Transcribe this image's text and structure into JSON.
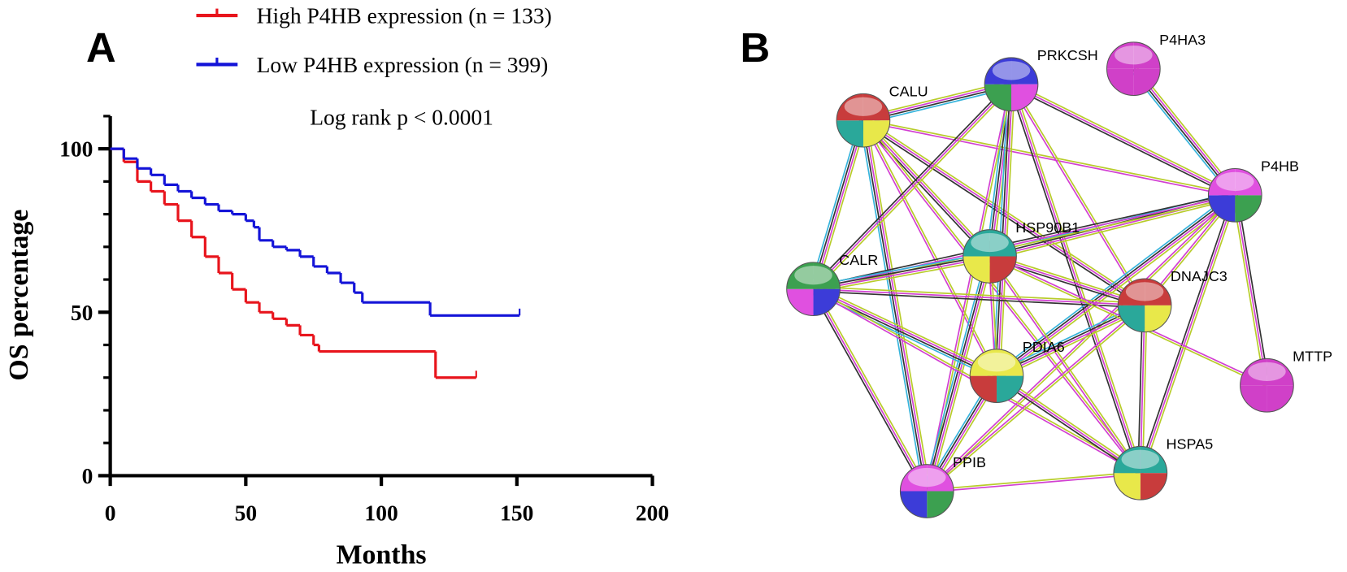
{
  "panel_labels": [
    "A",
    "B"
  ],
  "chart_data": {
    "type": "step",
    "xlabel": "Months",
    "ylabel": "OS percentage",
    "annotation": "Log rank p < 0.0001",
    "xlim": [
      0,
      200
    ],
    "xticks": [
      0,
      50,
      100,
      150,
      200
    ],
    "ylim": [
      0,
      110
    ],
    "yticks": [
      0,
      50,
      100
    ],
    "y_minor_ticks": [
      10,
      20,
      30,
      40,
      60,
      70,
      80,
      90,
      110
    ],
    "series": [
      {
        "name": "High P4HB expression (n = 133)",
        "color": "#e8141c",
        "x": [
          0,
          5,
          10,
          15,
          20,
          25,
          30,
          35,
          40,
          45,
          50,
          55,
          60,
          65,
          70,
          75,
          77,
          120,
          135
        ],
        "values": [
          100,
          96,
          90,
          87,
          83,
          78,
          73,
          67,
          62,
          57,
          53,
          50,
          48,
          46,
          43,
          40,
          38,
          30,
          30
        ]
      },
      {
        "name": "Low P4HB expression (n = 399)",
        "color": "#1414d8",
        "x": [
          0,
          5,
          10,
          15,
          20,
          25,
          30,
          35,
          40,
          45,
          50,
          53,
          55,
          60,
          65,
          70,
          75,
          80,
          85,
          90,
          93,
          118,
          151
        ],
        "values": [
          100,
          97,
          94,
          92,
          89,
          87,
          85,
          83,
          81,
          80,
          78,
          76,
          72,
          70,
          69,
          67,
          64,
          62,
          59,
          56,
          53,
          49,
          49
        ]
      }
    ]
  },
  "network": {
    "nodes": [
      {
        "label": "CALU"
      },
      {
        "label": "PRKCSH"
      },
      {
        "label": "P4HA3"
      },
      {
        "label": "P4HB"
      },
      {
        "label": "HSP90B1"
      },
      {
        "label": "CALR"
      },
      {
        "label": "DNAJC3"
      },
      {
        "label": "MTTP"
      },
      {
        "label": "PDIA6"
      },
      {
        "label": "PPIB"
      },
      {
        "label": "HSPA5"
      }
    ]
  }
}
